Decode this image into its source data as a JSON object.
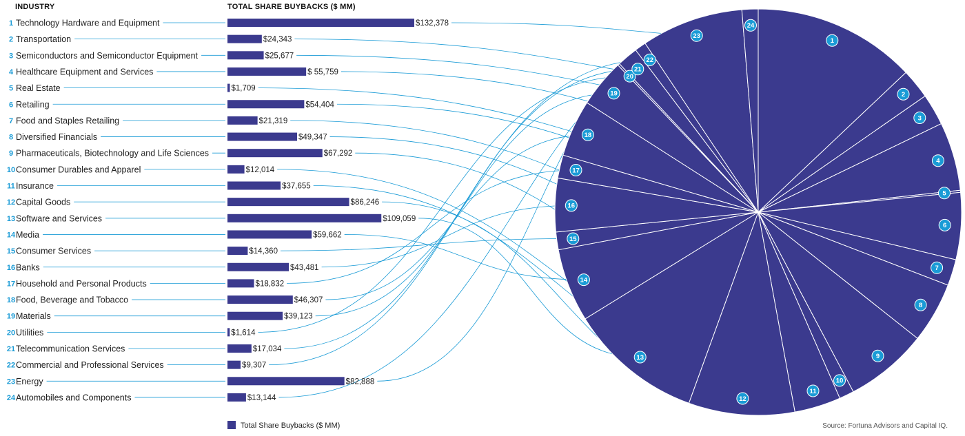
{
  "headers": {
    "industry": "INDUSTRY",
    "buybacks": "TOTAL SHARE BUYBACKS ($ MM)"
  },
  "legend": {
    "label": "Total Share Buybacks ($ MM)"
  },
  "source": "Source: Fortuna Advisors and Capital IQ.",
  "colors": {
    "bar": "#3b3a8e",
    "pie": "#3b3a8e",
    "bubble": "#1a9bd6",
    "connector": "#1a9bd6"
  },
  "chart_data": {
    "type": "bar",
    "orientation": "horizontal",
    "secondary_type": "pie",
    "categories": [
      "Technology Hardware and Equipment",
      "Transportation",
      "Semiconductors and Semiconductor Equipment",
      "Healthcare Equipment and Services",
      "Real Estate",
      "Retailing",
      "Food and Staples Retailing",
      "Diversified Financials",
      "Pharmaceuticals, Biotechnology and Life Sciences",
      "Consumer Durables and Apparel",
      "Insurance",
      "Capital Goods",
      "Software and Services",
      "Media",
      "Consumer Services",
      "Banks",
      "Household and Personal Products",
      "Food, Beverage and Tobacco",
      "Materials",
      "Utilities",
      "Telecommunication Services",
      "Commercial and Professional Services",
      "Energy",
      "Automobiles and Components"
    ],
    "ranks": [
      "1",
      "2",
      "3",
      "4",
      "5",
      "6",
      "7",
      "8",
      "9",
      "10",
      "11",
      "12",
      "13",
      "14",
      "15",
      "16",
      "17",
      "18",
      "19",
      "20",
      "21",
      "22",
      "23",
      "24"
    ],
    "values": [
      132378,
      24343,
      25677,
      55759,
      1709,
      54404,
      21319,
      49347,
      67292,
      12014,
      37655,
      86246,
      109059,
      59662,
      14360,
      43481,
      18832,
      46307,
      39123,
      1614,
      17034,
      9307,
      82888,
      13144
    ],
    "value_labels": [
      "$132,378",
      "$24,343",
      "$25,677",
      "$ 55,759",
      "$1,709",
      "$54,404",
      "$21,319",
      "$49,347",
      "$67,292",
      "$12,014",
      "$37,655",
      "$86,246",
      "$109,059",
      "$59,662",
      "$14,360",
      "$43,481",
      "$18,832",
      "$46,307",
      "$39,123",
      "$1,614",
      "$17,034",
      "$9,307",
      "$82,888",
      "$13,144"
    ],
    "xlim": [
      0,
      132378
    ]
  }
}
